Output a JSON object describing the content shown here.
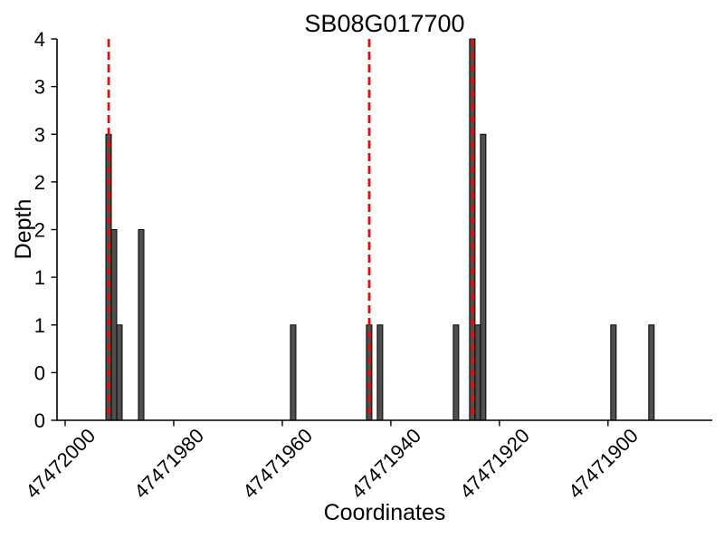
{
  "chart_data": {
    "type": "bar",
    "title": "SB08G017700",
    "xlabel": "Coordinates",
    "ylabel": "Depth",
    "x_axis_reversed": true,
    "xlim": [
      47472001.5,
      47471880.8
    ],
    "ylim": [
      0,
      4
    ],
    "bar_width": 1,
    "x_ticks": [
      {
        "value": 47472000,
        "label": "47472000"
      },
      {
        "value": 47471980,
        "label": "47471980"
      },
      {
        "value": 47471960,
        "label": "47471960"
      },
      {
        "value": 47471940,
        "label": "47471940"
      },
      {
        "value": 47471920,
        "label": "47471920"
      },
      {
        "value": 47471900,
        "label": "47471900"
      }
    ],
    "y_ticks": [
      {
        "value": 0,
        "label": "0"
      },
      {
        "value": 0.5,
        "label": "0"
      },
      {
        "value": 1,
        "label": "1"
      },
      {
        "value": 1.5,
        "label": "1"
      },
      {
        "value": 2,
        "label": "2"
      },
      {
        "value": 2.5,
        "label": "2"
      },
      {
        "value": 3,
        "label": "3"
      },
      {
        "value": 3.5,
        "label": "3"
      },
      {
        "value": 4,
        "label": "4"
      }
    ],
    "bars": [
      {
        "coordinate": 47471992,
        "depth": 3
      },
      {
        "coordinate": 47471991,
        "depth": 2
      },
      {
        "coordinate": 47471990,
        "depth": 1
      },
      {
        "coordinate": 47471986,
        "depth": 2
      },
      {
        "coordinate": 47471958,
        "depth": 1
      },
      {
        "coordinate": 47471944,
        "depth": 1
      },
      {
        "coordinate": 47471942,
        "depth": 1
      },
      {
        "coordinate": 47471928,
        "depth": 1
      },
      {
        "coordinate": 47471925,
        "depth": 4
      },
      {
        "coordinate": 47471924,
        "depth": 1
      },
      {
        "coordinate": 47471923,
        "depth": 3
      },
      {
        "coordinate": 47471899,
        "depth": 1
      },
      {
        "coordinate": 47471892,
        "depth": 1
      }
    ],
    "vlines": [
      {
        "coordinate": 47471992,
        "style": "dashed"
      },
      {
        "coordinate": 47471944,
        "style": "dashed"
      },
      {
        "coordinate": 47471925,
        "style": "dashed"
      }
    ],
    "colors": {
      "bar_fill": "#4f4f4f",
      "bar_edge": "#000000",
      "vline": "#ff0000",
      "axis": "#000000",
      "background": "#ffffff"
    },
    "legend": null,
    "grid": false
  }
}
